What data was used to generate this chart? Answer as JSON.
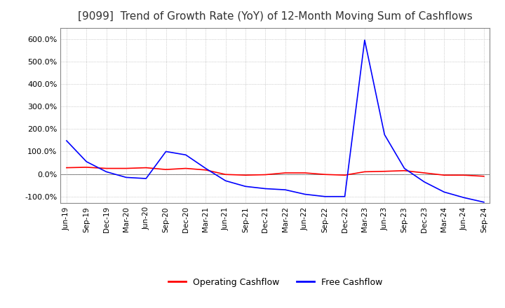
{
  "title": "[9099]  Trend of Growth Rate (YoY) of 12-Month Moving Sum of Cashflows",
  "title_fontsize": 11,
  "title_fontweight": "normal",
  "background_color": "#ffffff",
  "plot_bg_color": "#ffffff",
  "grid_color": "#aaaaaa",
  "ylim": [
    -130,
    650
  ],
  "yticks": [
    -100,
    0,
    100,
    200,
    300,
    400,
    500,
    600
  ],
  "legend_labels": [
    "Operating Cashflow",
    "Free Cashflow"
  ],
  "legend_colors": [
    "#ff0000",
    "#0000ff"
  ],
  "x_labels": [
    "Jun-19",
    "Sep-19",
    "Dec-19",
    "Mar-20",
    "Jun-20",
    "Sep-20",
    "Dec-20",
    "Mar-21",
    "Jun-21",
    "Sep-21",
    "Dec-21",
    "Mar-22",
    "Jun-22",
    "Sep-22",
    "Dec-22",
    "Mar-23",
    "Jun-23",
    "Sep-23",
    "Dec-23",
    "Mar-24",
    "Jun-24",
    "Sep-24"
  ],
  "operating_cashflow": [
    28,
    30,
    25,
    25,
    28,
    20,
    25,
    18,
    -2,
    -5,
    -3,
    5,
    5,
    -2,
    -5,
    10,
    12,
    15,
    5,
    -5,
    -5,
    -10
  ],
  "free_cashflow": [
    148,
    55,
    10,
    -15,
    -20,
    100,
    85,
    25,
    -30,
    -55,
    -65,
    -70,
    -90,
    -100,
    -100,
    595,
    175,
    25,
    -35,
    -80,
    -105,
    -125
  ]
}
